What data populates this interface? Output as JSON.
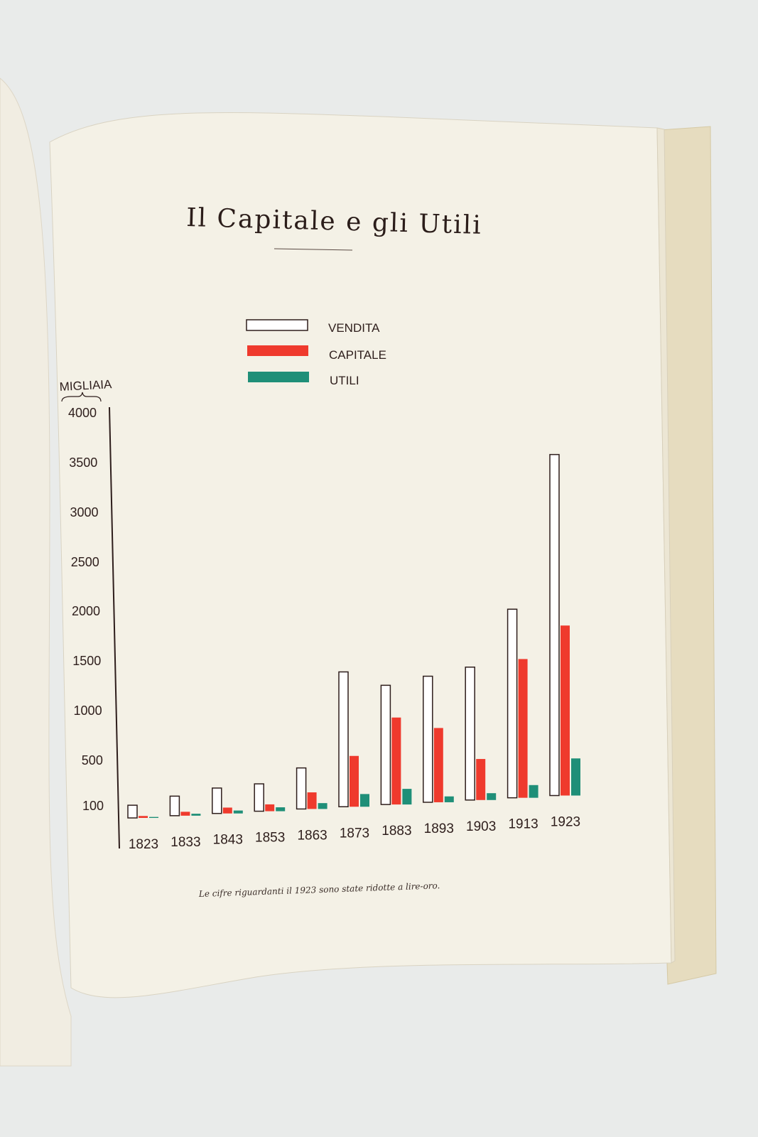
{
  "colors": {
    "background": "#e9ebea",
    "paper": "#f4f1e6",
    "board": "#e8dfc4",
    "ink": "#2e1e1c",
    "vendita_fill": "#ffffff",
    "capitale": "#ef3a2d",
    "utili": "#1f8f78"
  },
  "page": {
    "title": "Il Capitale e gli Utili",
    "footnote": "Le cifre riguardanti il 1923 sono state ridotte a lire-oro."
  },
  "chart_data": {
    "type": "bar",
    "title": "Il Capitale e gli Utili",
    "ylabel": "MIGLIAIA",
    "xlabel": "",
    "y_ticks": [
      "100",
      "500",
      "1000",
      "1500",
      "2000",
      "2500",
      "3000",
      "3500",
      "4000"
    ],
    "ylim": [
      0,
      4000
    ],
    "categories": [
      "1823",
      "1833",
      "1843",
      "1853",
      "1863",
      "1873",
      "1883",
      "1893",
      "1903",
      "1913",
      "1923"
    ],
    "legend_placement": "top-center",
    "series": [
      {
        "name": "VENDITA",
        "color": "#ffffff",
        "values": [
          130,
          200,
          260,
          280,
          420,
          1380,
          1220,
          1290,
          1360,
          1930,
          3490
        ]
      },
      {
        "name": "CAPITALE",
        "color": "#ef3a2d",
        "values": [
          20,
          40,
          60,
          70,
          170,
          520,
          890,
          760,
          420,
          1420,
          1740
        ]
      },
      {
        "name": "UTILI",
        "color": "#1f8f78",
        "values": [
          10,
          20,
          30,
          40,
          60,
          130,
          160,
          60,
          70,
          130,
          380
        ]
      }
    ]
  }
}
